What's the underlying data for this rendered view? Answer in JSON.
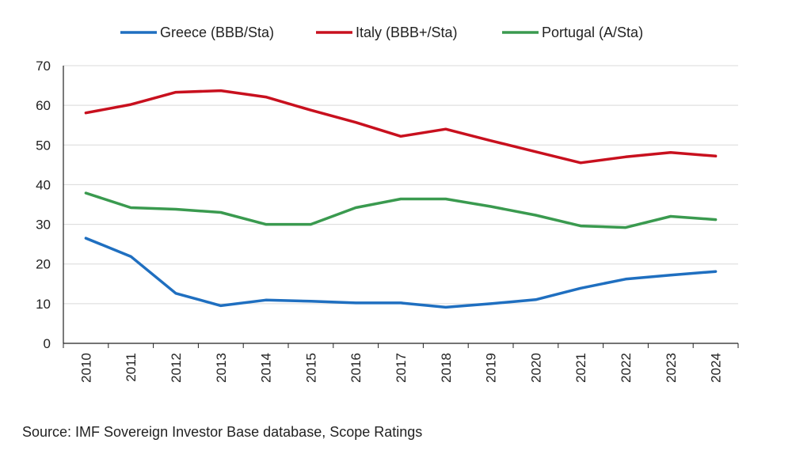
{
  "chart_data": {
    "type": "line",
    "title": "",
    "xlabel": "",
    "ylabel": "",
    "ylim": [
      0,
      70
    ],
    "yticks": [
      0,
      10,
      20,
      30,
      40,
      50,
      60,
      70
    ],
    "grid": "horizontal",
    "legend_position": "top-center",
    "categories": [
      "2010",
      "2011",
      "2012",
      "2013",
      "2014",
      "2015",
      "2016",
      "2017",
      "2018",
      "2019",
      "2020",
      "2021",
      "2022",
      "2023",
      "2024"
    ],
    "series": [
      {
        "name": "Greece (BBB/Sta)",
        "color": "#1f6fc0",
        "values": [
          26.5,
          21.9,
          12.6,
          9.5,
          10.9,
          10.6,
          10.2,
          10.2,
          9.1,
          10.0,
          11.0,
          13.9,
          16.2,
          17.2,
          18.1
        ]
      },
      {
        "name": "Italy (BBB+/Sta)",
        "color": "#c8101e",
        "values": [
          58.1,
          60.2,
          63.3,
          63.7,
          62.1,
          58.8,
          55.7,
          52.2,
          54.0,
          51.1,
          48.3,
          45.5,
          47.0,
          48.1,
          47.2
        ]
      },
      {
        "name": "Portugal (A/Sta)",
        "color": "#3a9a4f",
        "values": [
          37.9,
          34.2,
          33.8,
          33.0,
          30.0,
          30.0,
          34.2,
          36.4,
          36.4,
          34.5,
          32.3,
          29.6,
          29.2,
          32.0,
          31.2
        ]
      }
    ]
  },
  "source_text": "Source: IMF Sovereign Investor Base database, Scope Ratings"
}
